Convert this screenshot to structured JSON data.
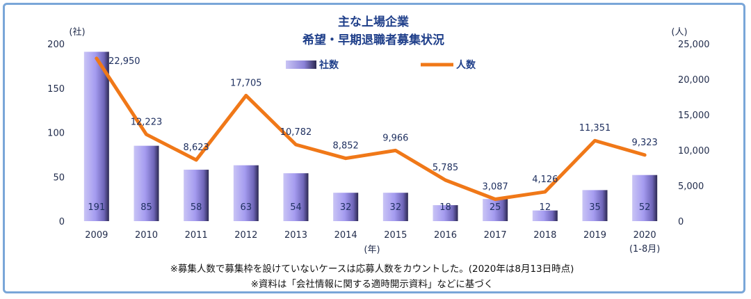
{
  "chart_data": {
    "type": "bar+line",
    "title_lines": [
      "主な上場企業",
      "希望・早期退職者募集状況"
    ],
    "categories": [
      "2009",
      "2010",
      "2011",
      "2012",
      "2013",
      "2014",
      "2015",
      "2016",
      "2017",
      "2018",
      "2019",
      "2020"
    ],
    "category_sublabels": [
      "",
      "",
      "",
      "",
      "",
      "",
      "",
      "",
      "",
      "",
      "",
      "(1-8月)"
    ],
    "xlabel": "(年)",
    "left_axis": {
      "unit": "(社)",
      "ylim": [
        0,
        200
      ],
      "ticks": [
        "0",
        "50",
        "100",
        "150",
        "200"
      ]
    },
    "right_axis": {
      "unit": "(人)",
      "ylim": [
        0,
        25000
      ],
      "ticks": [
        "0",
        "5,000",
        "10,000",
        "15,000",
        "20,000",
        "25,000"
      ]
    },
    "series": [
      {
        "name": "社数",
        "type": "bar",
        "axis": "left",
        "values": [
          191,
          85,
          58,
          63,
          54,
          32,
          32,
          18,
          25,
          12,
          35,
          52
        ],
        "labels": [
          "191",
          "85",
          "58",
          "63",
          "54",
          "32",
          "32",
          "18",
          "25",
          "12",
          "35",
          "52"
        ],
        "color": "#8b7fe0"
      },
      {
        "name": "人数",
        "type": "line",
        "axis": "right",
        "values": [
          22950,
          12223,
          8623,
          17705,
          10782,
          8852,
          9966,
          5785,
          3087,
          4126,
          11351,
          9323
        ],
        "labels": [
          "22,950",
          "12,223",
          "8,623",
          "17,705",
          "10,782",
          "8,852",
          "9,966",
          "5,785",
          "3,087",
          "4,126",
          "11,351",
          "9,323"
        ],
        "color": "#f07818"
      }
    ],
    "legend_placement": "top-center",
    "grid": false,
    "notes": [
      "※募集人数で募集枠を設けていないケースは応募人数をカウントした。(2020年は8月13日時点)",
      "※資料は「会社情報に関する適時開示資料」などに基づく"
    ]
  }
}
